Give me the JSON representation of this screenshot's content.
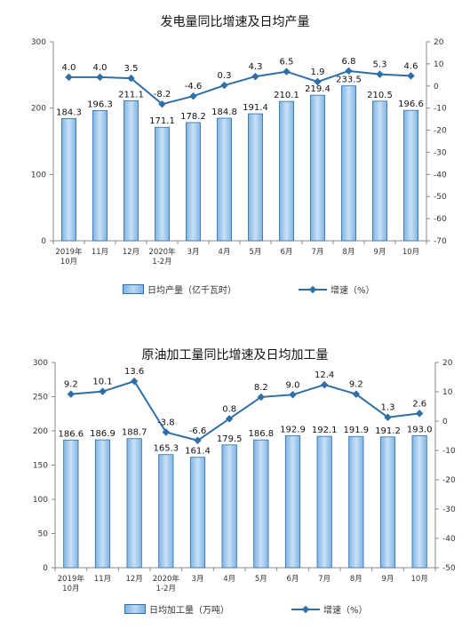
{
  "chart_data": [
    {
      "type": "bar",
      "title": "发电量同比增速及日均产量",
      "categories": [
        "2019年\n10月",
        "11月",
        "12月",
        "2020年\n1-2月",
        "3月",
        "4月",
        "5月",
        "6月",
        "7月",
        "8月",
        "9月",
        "10月"
      ],
      "left_axis": {
        "ylim": [
          0,
          300
        ],
        "ticks": [
          0,
          100,
          200,
          300
        ]
      },
      "right_axis": {
        "ylim": [
          -70,
          20
        ],
        "ticks": [
          20,
          10,
          0,
          -10,
          -20,
          -30,
          -40,
          -50,
          -60,
          -70
        ]
      },
      "series": [
        {
          "name": "日均产量（亿千瓦时）",
          "type": "bar",
          "axis": "left",
          "values": [
            184.3,
            196.3,
            211.1,
            171.1,
            178.2,
            184.8,
            191.4,
            210.1,
            219.4,
            233.5,
            210.5,
            196.6
          ],
          "labels": [
            "184.3",
            "196.3",
            "211.1",
            "171.1",
            "178.2",
            "184.8",
            "191.4",
            "210.1",
            "219.4",
            "233.5",
            "210.5",
            "196.6"
          ]
        },
        {
          "name": "增速（%）",
          "type": "line",
          "axis": "right",
          "values": [
            4.0,
            4.0,
            3.5,
            -8.2,
            -4.6,
            0.3,
            4.3,
            6.5,
            1.9,
            6.8,
            5.3,
            4.6
          ],
          "labels": [
            "4.0",
            "4.0",
            "3.5",
            "-8.2",
            "-4.6",
            "0.3",
            "4.3",
            "6.5",
            "1.9",
            "6.8",
            "5.3",
            "4.6"
          ]
        }
      ],
      "legend": {
        "bar_label": "日均产量（亿千瓦时）",
        "line_label": "增速（%）",
        "position": "bottom"
      },
      "colors": {
        "bar": "#9cc5ec",
        "line": "#2e6fa8"
      },
      "grid": false
    },
    {
      "type": "bar",
      "title": "原油加工量同比增速及日均加工量",
      "categories": [
        "2019年\n10月",
        "11月",
        "12月",
        "2020年\n1-2月",
        "3月",
        "4月",
        "5月",
        "6月",
        "7月",
        "8月",
        "9月",
        "10月"
      ],
      "left_axis": {
        "ylim": [
          0,
          300
        ],
        "ticks": [
          0,
          50,
          100,
          150,
          200,
          250,
          300
        ]
      },
      "right_axis": {
        "ylim": [
          -50,
          20
        ],
        "ticks": [
          20,
          10,
          0,
          -10,
          -20,
          -30,
          -40,
          -50
        ]
      },
      "series": [
        {
          "name": "日均加工量（万吨）",
          "type": "bar",
          "axis": "left",
          "values": [
            186.6,
            186.9,
            188.7,
            165.3,
            161.4,
            179.5,
            186.8,
            192.9,
            192.1,
            191.9,
            191.2,
            193.0
          ],
          "labels": [
            "186.6",
            "186.9",
            "188.7",
            "165.3",
            "161.4",
            "179.5",
            "186.8",
            "192.9",
            "192.1",
            "191.9",
            "191.2",
            "193.0"
          ]
        },
        {
          "name": "增速（%）",
          "type": "line",
          "axis": "right",
          "values": [
            9.2,
            10.1,
            13.6,
            -3.8,
            -6.6,
            0.8,
            8.2,
            9.0,
            12.4,
            9.2,
            1.3,
            2.6
          ],
          "labels": [
            "9.2",
            "10.1",
            "13.6",
            "-3.8",
            "-6.6",
            "0.8",
            "8.2",
            "9.0",
            "12.4",
            "9.2",
            "1.3",
            "2.6"
          ]
        }
      ],
      "legend": {
        "bar_label": "日均加工量（万吨）",
        "line_label": "增速（%）",
        "position": "bottom"
      },
      "colors": {
        "bar": "#9cc5ec",
        "line": "#2e6fa8"
      },
      "grid": false
    }
  ]
}
